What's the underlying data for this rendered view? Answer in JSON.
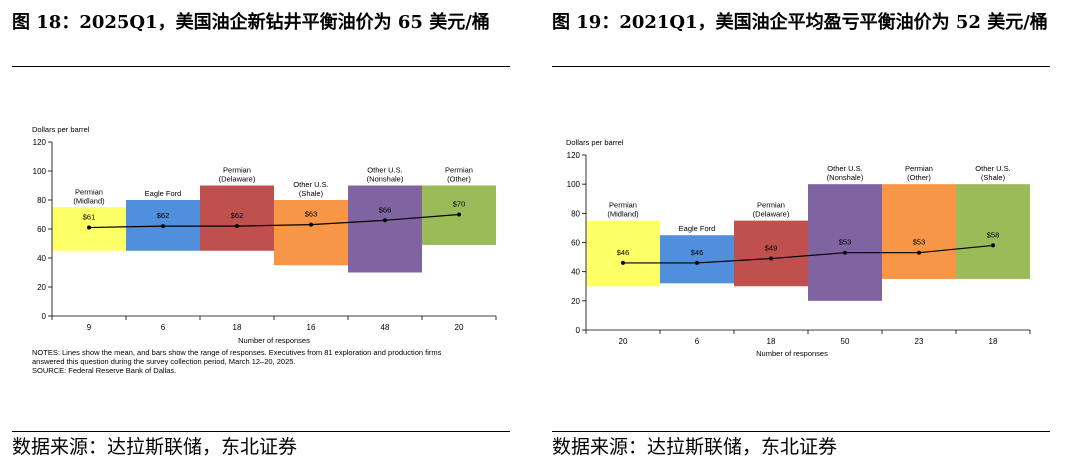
{
  "panels": [
    {
      "figure_title": "图 18：2025Q1，美国油企新钻井平衡油价为 65 美元/桶",
      "source": "数据来源：达拉斯联储，东北证券",
      "notes": [
        "NOTES: Lines show the mean, and bars show the range of responses. Executives from 81 exploration and production firms",
        "answered this question during the survey collection period, March 12–20, 2025.",
        "SOURCE: Federal Reserve Bank of Dallas."
      ]
    },
    {
      "figure_title": "图 19：2021Q1，美国油企平均盈亏平衡油价为 52 美元/桶",
      "source": "数据来源：达拉斯联储，东北证券",
      "notes": []
    }
  ],
  "chart_data": [
    {
      "type": "bar",
      "ylabel": "Dollars per barrel",
      "xlabel": "Number of responses",
      "ylim": [
        0,
        120
      ],
      "yticks": [
        0,
        20,
        40,
        60,
        80,
        100,
        120
      ],
      "categories": [
        "Permian (Midland)",
        "Eagle Ford",
        "Permian (Delaware)",
        "Other U.S. (Shale)",
        "Other U.S. (Nonshale)",
        "Permian (Other)"
      ],
      "category_label_lines": [
        [
          "Permian",
          "(Midland)"
        ],
        [
          "Eagle Ford"
        ],
        [
          "Permian",
          "(Delaware)"
        ],
        [
          "Other U.S.",
          "(Shale)"
        ],
        [
          "Other U.S.",
          "(Nonshale)"
        ],
        [
          "Permian",
          "(Other)"
        ]
      ],
      "responses": [
        "9",
        "6",
        "18",
        "16",
        "48",
        "20"
      ],
      "range_low": [
        45,
        45,
        45,
        35,
        30,
        49
      ],
      "range_high": [
        75,
        80,
        90,
        80,
        90,
        90
      ],
      "mean": [
        61,
        62,
        62,
        63,
        66,
        70
      ],
      "mean_labels": [
        "$61",
        "$62",
        "$62",
        "$63",
        "$66",
        "$70"
      ],
      "colors": [
        "#ffff66",
        "#4f8fdb",
        "#c0504d",
        "#f79646",
        "#8064a2",
        "#9bbb59"
      ]
    },
    {
      "type": "bar",
      "ylabel": "Dollars per barrel",
      "xlabel": "Number of responses",
      "ylim": [
        0,
        120
      ],
      "yticks": [
        0,
        20,
        40,
        60,
        80,
        100,
        120
      ],
      "categories": [
        "Permian (Midland)",
        "Eagle Ford",
        "Permian (Delaware)",
        "Other U.S. (Nonshale)",
        "Permian (Other)",
        "Other U.S. (Shale)"
      ],
      "category_label_lines": [
        [
          "Permian",
          "(Midland)"
        ],
        [
          "Eagle Ford"
        ],
        [
          "Permian",
          "(Delaware)"
        ],
        [
          "Other U.S.",
          "(Nonshale)"
        ],
        [
          "Permian",
          "(Other)"
        ],
        [
          "Other U.S.",
          "(Shale)"
        ]
      ],
      "responses": [
        "20",
        "6",
        "18",
        "50",
        "23",
        "18"
      ],
      "range_low": [
        30,
        32,
        30,
        20,
        35,
        35
      ],
      "range_high": [
        75,
        65,
        75,
        100,
        100,
        100
      ],
      "mean": [
        46,
        46,
        49,
        53,
        53,
        58
      ],
      "mean_labels": [
        "$46",
        "$46",
        "$49",
        "$53",
        "$53",
        "$58"
      ],
      "colors": [
        "#ffff66",
        "#4f8fdb",
        "#c0504d",
        "#8064a2",
        "#f79646",
        "#9bbb59"
      ]
    }
  ]
}
